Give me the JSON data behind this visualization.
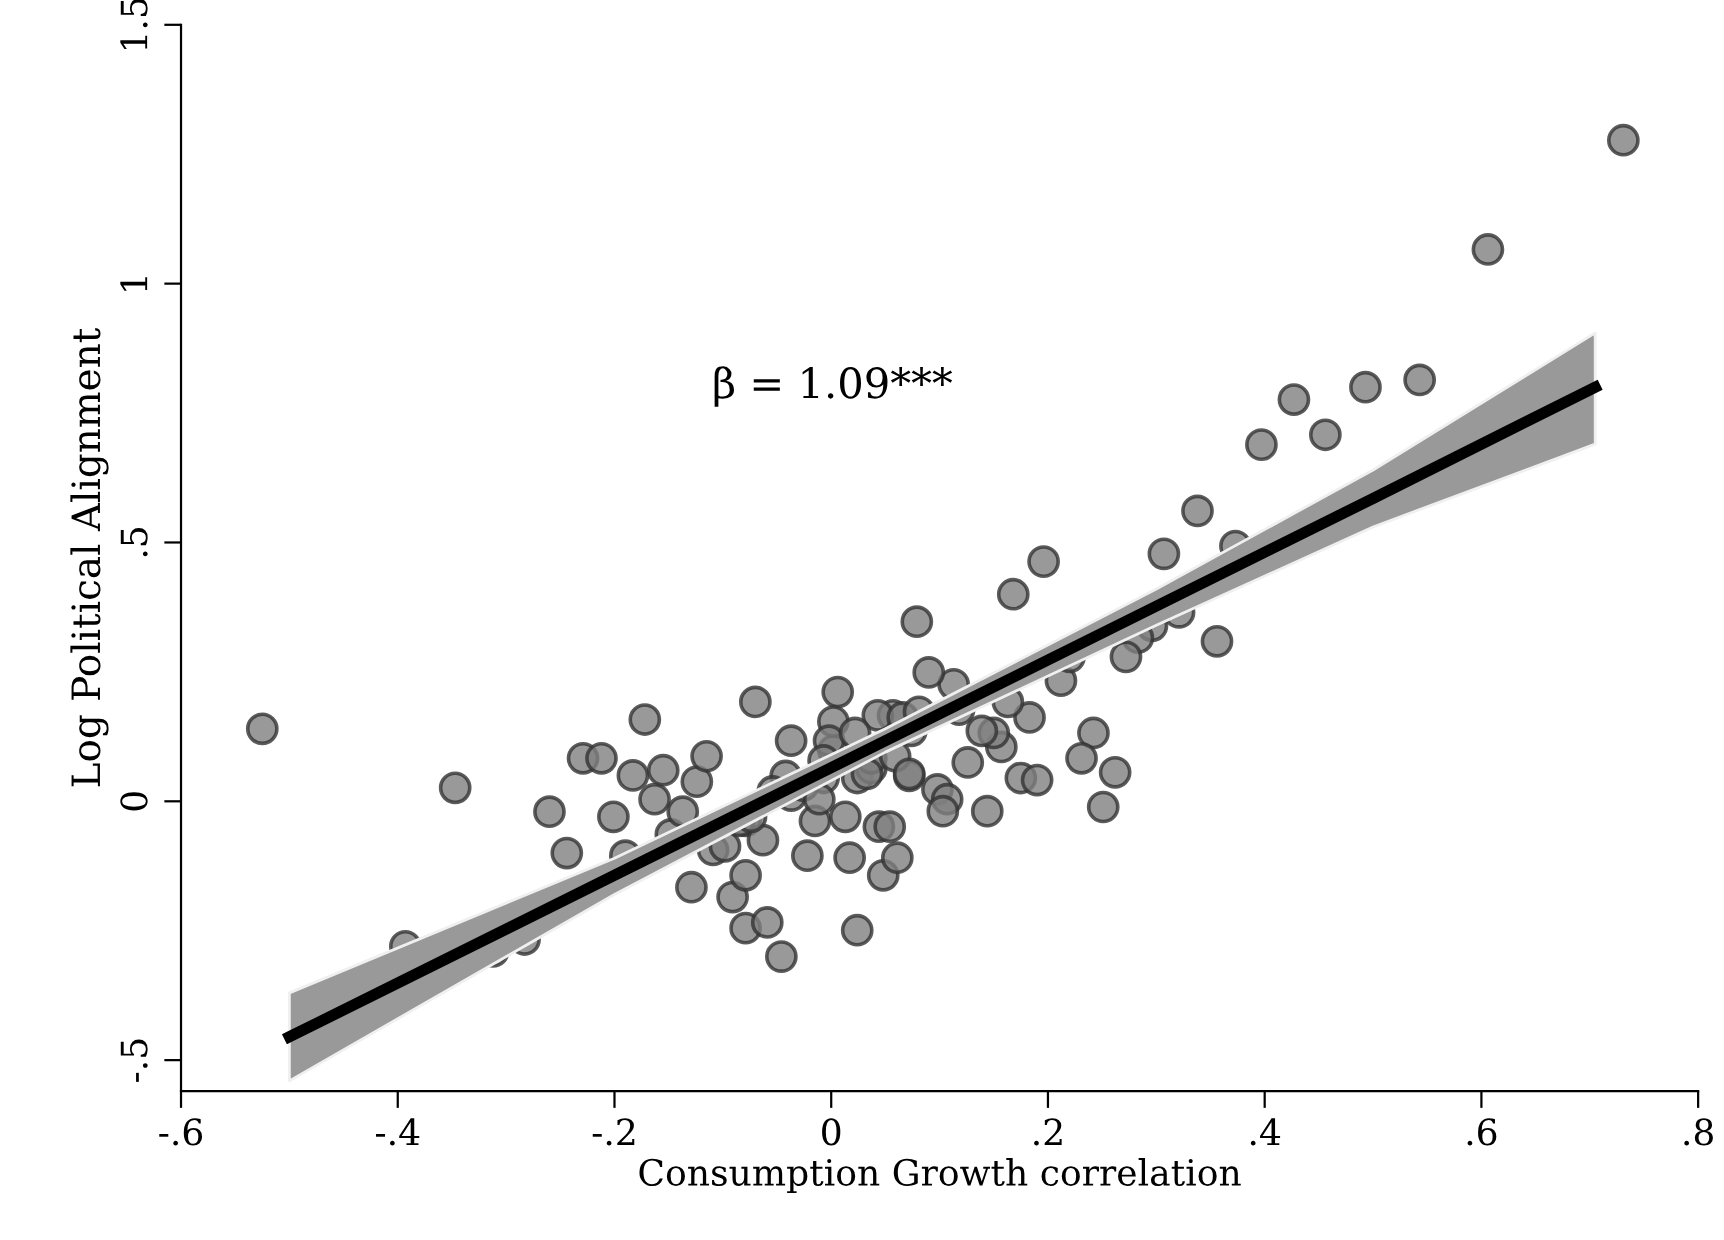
{
  "chart_data": {
    "type": "scatter",
    "xlabel": "Consumption Growth correlation",
    "ylabel": "Log Political Alignment",
    "annotations": [
      "β = 1.09***"
    ],
    "xlim": [
      -0.6,
      0.8
    ],
    "ylim": [
      -0.56,
      1.5
    ],
    "xticks": [
      {
        "value": -0.6,
        "label": "-.6"
      },
      {
        "value": -0.4,
        "label": "-.4"
      },
      {
        "value": -0.2,
        "label": "-.2"
      },
      0,
      {
        "value": 0.2,
        "label": ".2"
      },
      {
        "value": 0.4,
        "label": ".4"
      },
      {
        "value": 0.6,
        "label": ".6"
      },
      {
        "value": 0.8,
        "label": ".8"
      }
    ],
    "yticks": [
      {
        "value": -0.5,
        "label": "-.5"
      },
      0,
      {
        "value": 0.5,
        "label": ".5"
      },
      1,
      1.5
    ],
    "grid": false,
    "legend": false,
    "series": [
      {
        "marker": "circle",
        "color": "#7f7f7f",
        "x": [
          -0.525,
          -0.393,
          -0.347,
          -0.312,
          -0.283,
          -0.26,
          -0.244,
          -0.229,
          -0.212,
          -0.201,
          -0.19,
          -0.183,
          -0.172,
          -0.163,
          -0.155,
          -0.148,
          -0.137,
          -0.129,
          -0.124,
          -0.115,
          -0.109,
          -0.098,
          -0.091,
          -0.079,
          -0.07,
          -0.079,
          -0.063,
          -0.059,
          -0.046,
          -0.037,
          -0.037,
          -0.022,
          -0.015,
          -0.007,
          0.002,
          0.006,
          0.013,
          0.017,
          0.024,
          0.024,
          0.037,
          0.044,
          0.048,
          0.057,
          0.054,
          0.061,
          0.072,
          0.074,
          0.079,
          0.168,
          0.196,
          0.307,
          0.338,
          0.373,
          0.397,
          0.427,
          0.456,
          0.493,
          0.543,
          0.606,
          0.731,
          0.356,
          0.321,
          0.296,
          0.283,
          0.272,
          0.242,
          0.231,
          0.262,
          0.251,
          0.212,
          0.22,
          0.183,
          0.163,
          0.157,
          0.15,
          0.139,
          0.175,
          0.19,
          0.144,
          0.126,
          0.113,
          0.09,
          0.098,
          0.107,
          0.103,
          0.118,
          0.002,
          0.043,
          0.066,
          0.081,
          -0.002,
          0.022,
          -0.007,
          0.037,
          0.059,
          0.033,
          0.072,
          -0.042,
          -0.026,
          -0.054,
          -0.011,
          -0.085,
          -0.074,
          -0.079
        ],
        "values": [
          0.14,
          -0.28,
          0.026,
          -0.29,
          -0.267,
          -0.02,
          -0.1,
          0.083,
          0.083,
          -0.03,
          -0.105,
          0.05,
          0.158,
          0.004,
          0.06,
          -0.064,
          -0.02,
          -0.166,
          0.038,
          0.087,
          -0.094,
          -0.087,
          -0.185,
          -0.245,
          0.192,
          -0.038,
          -0.075,
          -0.234,
          -0.3,
          0.117,
          0.011,
          -0.105,
          -0.038,
          0.045,
          0.098,
          0.211,
          -0.03,
          -0.109,
          -0.249,
          0.045,
          0.064,
          -0.049,
          -0.143,
          0.166,
          -0.049,
          -0.109,
          0.049,
          0.136,
          0.347,
          0.4,
          0.463,
          0.478,
          0.561,
          0.493,
          0.689,
          0.776,
          0.708,
          0.8,
          0.814,
          1.066,
          1.277,
          0.309,
          0.365,
          0.339,
          0.316,
          0.279,
          0.132,
          0.083,
          0.056,
          -0.011,
          0.233,
          0.279,
          0.162,
          0.192,
          0.105,
          0.132,
          0.136,
          0.045,
          0.041,
          -0.019,
          0.075,
          0.226,
          0.249,
          0.023,
          0.004,
          -0.019,
          0.177,
          0.154,
          0.166,
          0.162,
          0.173,
          0.117,
          0.132,
          0.079,
          0.083,
          0.087,
          0.053,
          0.053,
          0.049,
          0.03,
          0.019,
          0.004,
          -0.038,
          -0.03,
          -0.143
        ]
      },
      {
        "type": "line",
        "color": "#000000",
        "x": [
          -0.5,
          -0.2,
          0.05,
          0.3,
          0.5,
          0.705
        ],
        "values": [
          -0.455,
          -0.143,
          0.117,
          0.377,
          0.585,
          0.8
        ],
        "lower": [
          -0.54,
          -0.18,
          0.095,
          0.34,
          0.53,
          0.69
        ],
        "upper": [
          -0.37,
          -0.11,
          0.14,
          0.41,
          0.64,
          0.905
        ]
      }
    ]
  }
}
